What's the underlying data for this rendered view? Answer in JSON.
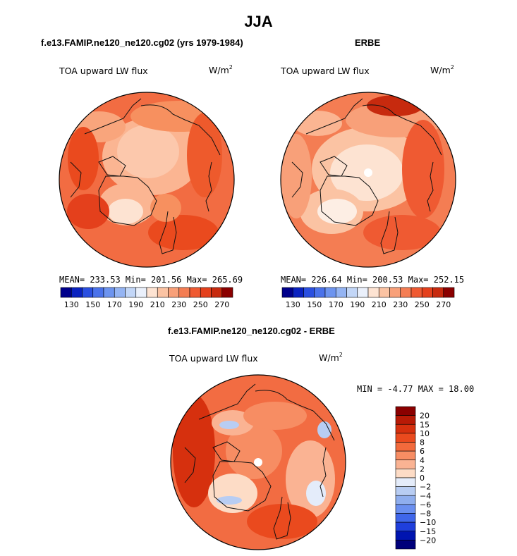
{
  "title": "JJA",
  "panels": {
    "model": {
      "header": "f.e13.FAMIP.ne120_ne120.cg02 (yrs 1979-1984)",
      "field": "TOA upward LW flux",
      "units": "W/m",
      "units_sup": "2",
      "stats": "MEAN= 233.53  Min= 201.56  Max= 265.69",
      "colorbar_labels": [
        "130",
        "150",
        "170",
        "190",
        "210",
        "230",
        "250",
        "270"
      ]
    },
    "obs": {
      "header": "ERBE",
      "field": "TOA upward LW flux",
      "units": "W/m",
      "units_sup": "2",
      "stats": "MEAN= 226.64  Min= 200.53  Max= 252.15",
      "colorbar_labels": [
        "130",
        "150",
        "170",
        "190",
        "210",
        "230",
        "250",
        "270"
      ]
    },
    "diff": {
      "header": "f.e13.FAMIP.ne120_ne120.cg02 - ERBE",
      "field": "TOA upward LW flux",
      "units": "W/m",
      "units_sup": "2",
      "stats": "MIN =  -4.77 MAX =  18.00",
      "colorbar_labels": [
        "20",
        "15",
        "10",
        "8",
        "6",
        "4",
        "2",
        "0",
        "−2",
        "−4",
        "−6",
        "−8",
        "−10",
        "−15",
        "−20"
      ]
    }
  },
  "colors": {
    "seq_colorbar": [
      "#00008b",
      "#0a22c0",
      "#2a4fe0",
      "#4a72ea",
      "#6d94ef",
      "#94b4f3",
      "#c2d6f7",
      "#eaf0fb",
      "#fde3d2",
      "#fbc3a3",
      "#f8a079",
      "#f47d53",
      "#ef5a32",
      "#e4401c",
      "#c72a0e",
      "#8b0000"
    ],
    "diff_colorbar": [
      "#8b0000",
      "#b81a06",
      "#d6300e",
      "#ea4a1e",
      "#f26a3c",
      "#f78d63",
      "#fab393",
      "#fddcc6",
      "#e4ecfa",
      "#b8cdf3",
      "#8faeee",
      "#6a8ff0",
      "#3f66ea",
      "#1f3fdc",
      "#0014b0",
      "#00007a"
    ],
    "map_background": "#f26c42"
  }
}
